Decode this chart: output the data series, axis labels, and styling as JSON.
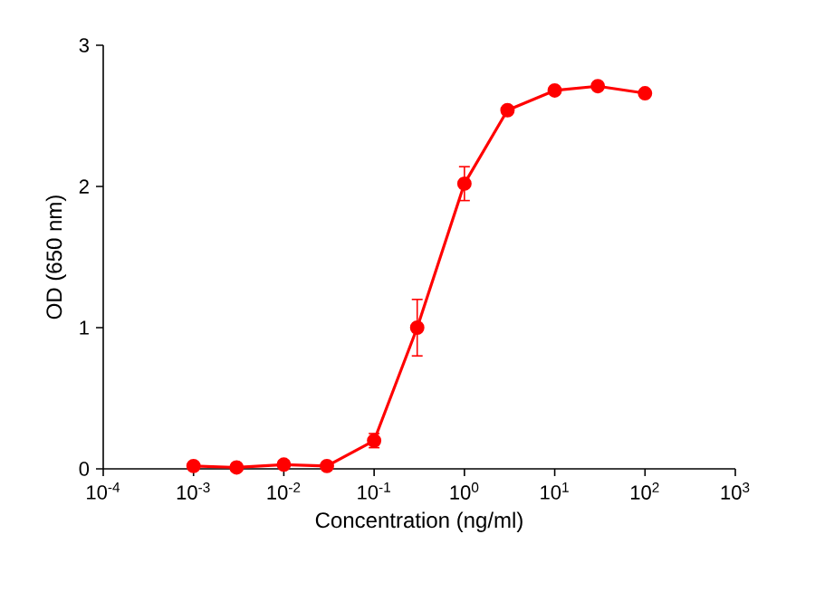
{
  "chart_data": {
    "type": "line",
    "xlabel": "Concentration (ng/ml)",
    "ylabel": "OD (650 nm)",
    "log": "x",
    "x": [
      0.001,
      0.003,
      0.01,
      0.03,
      0.1,
      0.3,
      1,
      3,
      10,
      30,
      100
    ],
    "series": [
      {
        "color": "#ff0000",
        "values": [
          0.02,
          0.01,
          0.03,
          0.02,
          0.2,
          1.0,
          2.02,
          2.54,
          2.68,
          2.71,
          2.66
        ],
        "errors": [
          null,
          null,
          null,
          null,
          0.05,
          0.2,
          0.12,
          null,
          null,
          null,
          null
        ]
      }
    ],
    "xlim": [
      0.0001,
      1000
    ],
    "xticks": [
      {
        "value": 0.0001,
        "label": "10$^{-4}$"
      },
      {
        "value": 0.001,
        "label": "10$^{-3}$"
      },
      {
        "value": 0.01,
        "label": "10$^{-2}$"
      },
      {
        "value": 0.1,
        "label": "10$^{-1}$"
      },
      {
        "value": 1,
        "label": "10$^{0}$"
      },
      {
        "value": 10,
        "label": "10$^{1}$"
      },
      {
        "value": 100,
        "label": "10$^{2}$"
      },
      {
        "value": 1000,
        "label": "10$^{3}$"
      }
    ],
    "ylim": [
      0,
      3
    ],
    "yticks": [
      0,
      1,
      2,
      3
    ],
    "marker": "circle",
    "line_style": "solid"
  }
}
